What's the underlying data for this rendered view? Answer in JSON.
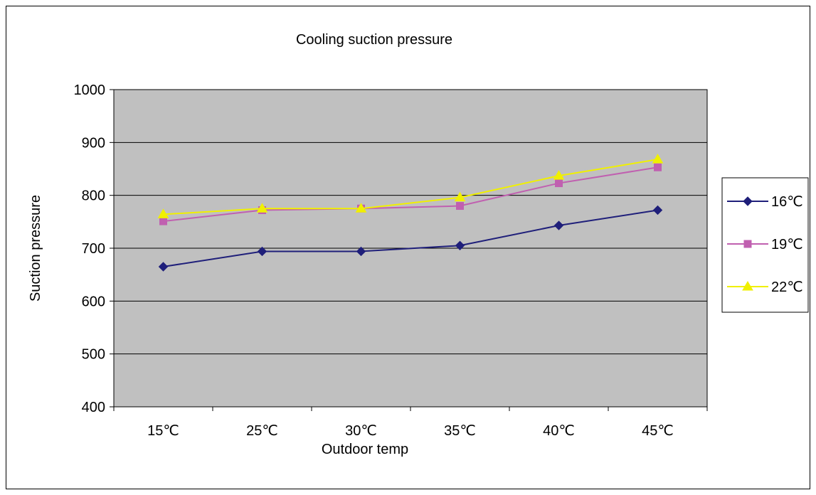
{
  "chart_data": {
    "type": "line",
    "title": "Cooling suction pressure",
    "xlabel": "Outdoor temp",
    "ylabel": "Suction pressure",
    "categories": [
      "15℃",
      "25℃",
      "30℃",
      "35℃",
      "40℃",
      "45℃"
    ],
    "ylim": [
      400,
      1000
    ],
    "yticks": [
      400,
      500,
      600,
      700,
      800,
      900,
      1000
    ],
    "grid": true,
    "legend_position": "right",
    "plot_background": "#C0C0C0",
    "series": [
      {
        "name": "16℃",
        "color": "#1F1F7A",
        "marker": "diamond",
        "values": [
          665,
          694,
          694,
          705,
          743,
          772
        ]
      },
      {
        "name": "19℃",
        "color": "#C060B0",
        "marker": "square",
        "values": [
          751,
          772,
          775,
          780,
          823,
          853
        ]
      },
      {
        "name": "22℃",
        "color": "#F0F000",
        "marker": "triangle",
        "values": [
          764,
          775,
          775,
          796,
          837,
          868
        ]
      }
    ]
  }
}
